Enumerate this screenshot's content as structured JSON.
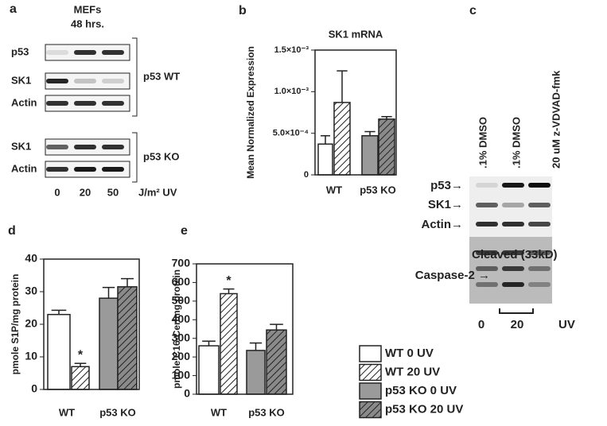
{
  "blot_a": {
    "panel": "a",
    "title": "MEFs",
    "subtitle": "48 hrs.",
    "groups": [
      {
        "label": "p53 WT",
        "rows": [
          "p53",
          "SK1",
          "Actin"
        ]
      },
      {
        "label": "p53 KO",
        "rows": [
          "SK1",
          "Actin"
        ]
      }
    ],
    "lanes": [
      "0",
      "20",
      "50"
    ],
    "lane_unit": "J/m² UV"
  },
  "blot_c": {
    "panel": "c",
    "lanes": [
      ".1% DMSO",
      ".1% DMSO",
      "20 uM z-VDVAD-fmk"
    ],
    "rows": [
      "p53→",
      "SK1→",
      "Actin→",
      "Cleaved (33kD)",
      "Caspase-2 →"
    ],
    "doses": [
      "0",
      "20"
    ],
    "dose_unit": "UV"
  },
  "legend": [
    {
      "name": "WT 0 UV",
      "color": "#ffffff",
      "hatch": false
    },
    {
      "name": "WT 20 UV",
      "color": "#ffffff",
      "hatch": true
    },
    {
      "name": "p53 KO 0 UV",
      "color": "#9a9a9a",
      "hatch": false
    },
    {
      "name": "p53 KO 20 UV",
      "color": "#8a8a8a",
      "hatch": true
    }
  ],
  "chart_data": [
    {
      "type": "bar",
      "panel": "b",
      "title": "SK1 mRNA",
      "y_label": "Mean Normalized Expression",
      "categories": [
        "WT",
        "p53 KO"
      ],
      "series": [
        {
          "values": [
            0.00037,
            null
          ],
          "errors": [
            0.0001,
            null
          ]
        },
        {
          "values": [
            0.00087,
            null
          ],
          "errors": [
            0.00038,
            null
          ]
        },
        {
          "values": [
            null,
            0.00047
          ],
          "errors": [
            null,
            5e-05
          ]
        },
        {
          "values": [
            null,
            0.00067
          ],
          "errors": [
            null,
            3e-05
          ]
        }
      ],
      "ylim": [
        0,
        0.0015
      ],
      "yticks": [
        0,
        {
          "value": 0.0005,
          "label": "5.0×10⁻⁴"
        },
        {
          "value": 0.001,
          "label": "1.0×10⁻³"
        },
        {
          "value": 0.0015,
          "label": "1.5×10⁻³"
        }
      ]
    },
    {
      "type": "bar",
      "panel": "d",
      "y_label": "pmole S1P/mg protein",
      "categories": [
        "WT",
        "p53 KO"
      ],
      "series": [
        {
          "values": [
            23,
            null
          ],
          "errors": [
            1.3,
            null
          ]
        },
        {
          "values": [
            7,
            null
          ],
          "errors": [
            1,
            null
          ]
        },
        {
          "values": [
            null,
            28
          ],
          "errors": [
            null,
            3.3
          ]
        },
        {
          "values": [
            null,
            31.5
          ],
          "errors": [
            null,
            2.5
          ]
        }
      ],
      "ylim": [
        0,
        40
      ],
      "yticks": [
        0,
        10,
        20,
        30,
        40
      ],
      "annotations": [
        "*"
      ]
    },
    {
      "type": "bar",
      "panel": "e",
      "y_label": "pmole C16-Cer/mg protein",
      "categories": [
        "WT",
        "p53 KO"
      ],
      "series": [
        {
          "values": [
            260,
            null
          ],
          "errors": [
            25,
            null
          ]
        },
        {
          "values": [
            540,
            null
          ],
          "errors": [
            25,
            null
          ]
        },
        {
          "values": [
            null,
            235
          ],
          "errors": [
            null,
            40
          ]
        },
        {
          "values": [
            null,
            345
          ],
          "errors": [
            null,
            30
          ]
        }
      ],
      "ylim": [
        0,
        700
      ],
      "yticks": [
        0,
        100,
        200,
        300,
        400,
        500,
        600,
        700
      ],
      "annotations": [
        "*"
      ]
    }
  ]
}
